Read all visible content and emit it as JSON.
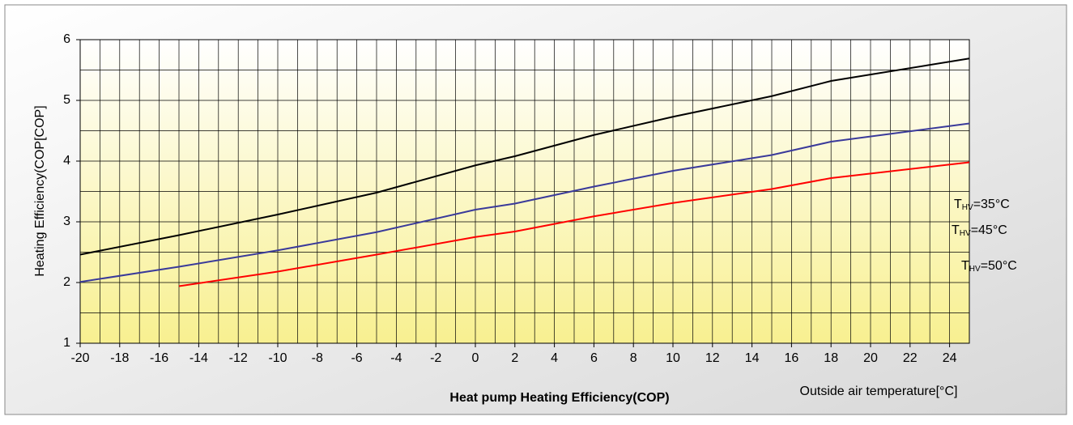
{
  "chart_data": {
    "type": "line",
    "y_label": "Heating Efficiency(COP[COP]",
    "x_label": "Heat pump Heating Efficiency(COP)",
    "x_unit_label": "Outside air temperature[°C]",
    "xlim": [
      -20,
      25
    ],
    "ylim": [
      1,
      6
    ],
    "xticks": [
      -20,
      -18,
      -16,
      -14,
      -12,
      -10,
      -8,
      -6,
      -4,
      -2,
      0,
      2,
      4,
      6,
      8,
      10,
      12,
      14,
      16,
      18,
      20,
      22,
      24
    ],
    "yticks": [
      1,
      2,
      3,
      4,
      5,
      6
    ],
    "grid": true,
    "xgrid_step": 1,
    "ygrid_step": 0.5,
    "series": [
      {
        "name_parts": [
          "T",
          "HV",
          "=35°C"
        ],
        "color": "#000000",
        "x": [
          -20,
          -15,
          -10,
          -5,
          0,
          2,
          6,
          10,
          15,
          18,
          25
        ],
        "values": [
          2.46,
          2.78,
          3.12,
          3.48,
          3.93,
          4.08,
          4.43,
          4.73,
          5.07,
          5.32,
          5.69
        ]
      },
      {
        "name_parts": [
          "T",
          "HV",
          "=45°C"
        ],
        "color": "#3a3a9a",
        "x": [
          -20,
          -15,
          -10,
          -5,
          0,
          2,
          6,
          10,
          15,
          18,
          25
        ],
        "values": [
          2.01,
          2.26,
          2.53,
          2.83,
          3.2,
          3.3,
          3.58,
          3.84,
          4.1,
          4.32,
          4.62
        ]
      },
      {
        "name_parts": [
          "T",
          "HV",
          "=50°C"
        ],
        "color": "#ff0000",
        "x": [
          -15,
          -10,
          -5,
          0,
          2,
          6,
          10,
          15,
          18,
          25
        ],
        "values": [
          1.94,
          2.18,
          2.46,
          2.75,
          2.84,
          3.09,
          3.31,
          3.54,
          3.72,
          3.98
        ]
      }
    ]
  }
}
